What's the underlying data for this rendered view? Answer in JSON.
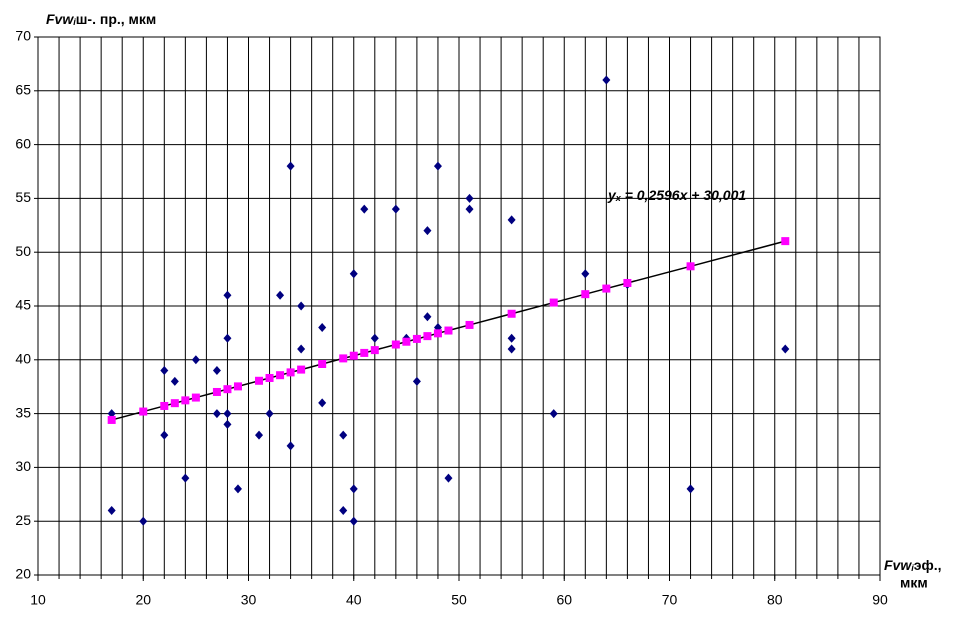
{
  "chart_data": {
    "type": "scatter",
    "y_label": {
      "main": "Fvw",
      "sub": "i",
      "rest": "ш-. пр., мкм"
    },
    "x_label": {
      "main": "Fvw",
      "sub": "i",
      "rest": "эф.,",
      "line2": "мкм"
    },
    "equation": {
      "y": "y",
      "sub": "x",
      "rest": " = 0,2596x + 30,001"
    },
    "xlim": [
      10,
      90
    ],
    "ylim": [
      20,
      70
    ],
    "xticks": [
      10,
      20,
      30,
      40,
      50,
      60,
      70,
      80,
      90
    ],
    "yticks": [
      20,
      25,
      30,
      35,
      40,
      45,
      50,
      55,
      60,
      65,
      70
    ],
    "xgrid": [
      10,
      12,
      14,
      16,
      18,
      20,
      22,
      24,
      26,
      28,
      30,
      32,
      34,
      36,
      38,
      40,
      42,
      44,
      46,
      48,
      50,
      52,
      54,
      56,
      58,
      60,
      62,
      64,
      66,
      68,
      70,
      72,
      74,
      76,
      78,
      80,
      82,
      84,
      86,
      88,
      90
    ],
    "grid": true,
    "series": [
      {
        "color": "#000080",
        "marker": "diamond",
        "x": [
          17,
          17,
          20,
          22,
          22,
          23,
          24,
          25,
          27,
          27,
          28,
          28,
          28,
          28,
          29,
          31,
          32,
          33,
          34,
          34,
          35,
          35,
          37,
          37,
          39,
          39,
          40,
          40,
          40,
          41,
          42,
          44,
          45,
          46,
          47,
          47,
          48,
          48,
          49,
          51,
          51,
          55,
          55,
          55,
          59,
          62,
          64,
          66,
          72,
          81
        ],
        "values": [
          35,
          26,
          25,
          39,
          33,
          38,
          29,
          40,
          39,
          35,
          46,
          42,
          35,
          34,
          28,
          33,
          35,
          46,
          58,
          32,
          45,
          41,
          43,
          36,
          33,
          26,
          48,
          28,
          25,
          54,
          42,
          54,
          42,
          38,
          52,
          44,
          58,
          43,
          29,
          55,
          54,
          53,
          42,
          41,
          35,
          48,
          66,
          47,
          28,
          41
        ]
      },
      {
        "color": "#ff00ff",
        "marker": "square",
        "line_color": "#000000",
        "x": [
          17,
          20,
          22,
          23,
          24,
          25,
          27,
          28,
          29,
          31,
          32,
          33,
          34,
          35,
          37,
          39,
          40,
          41,
          42,
          44,
          45,
          46,
          47,
          48,
          49,
          51,
          55,
          59,
          62,
          64,
          66,
          72,
          81
        ],
        "values": [
          34.41,
          35.19,
          35.71,
          35.97,
          36.23,
          36.49,
          37.01,
          37.27,
          37.53,
          38.05,
          38.31,
          38.57,
          38.83,
          39.09,
          39.61,
          40.13,
          40.38,
          40.64,
          40.9,
          41.42,
          41.68,
          41.94,
          42.2,
          42.46,
          42.72,
          43.24,
          44.28,
          45.32,
          46.1,
          46.62,
          47.14,
          48.69,
          51.03
        ]
      }
    ]
  }
}
